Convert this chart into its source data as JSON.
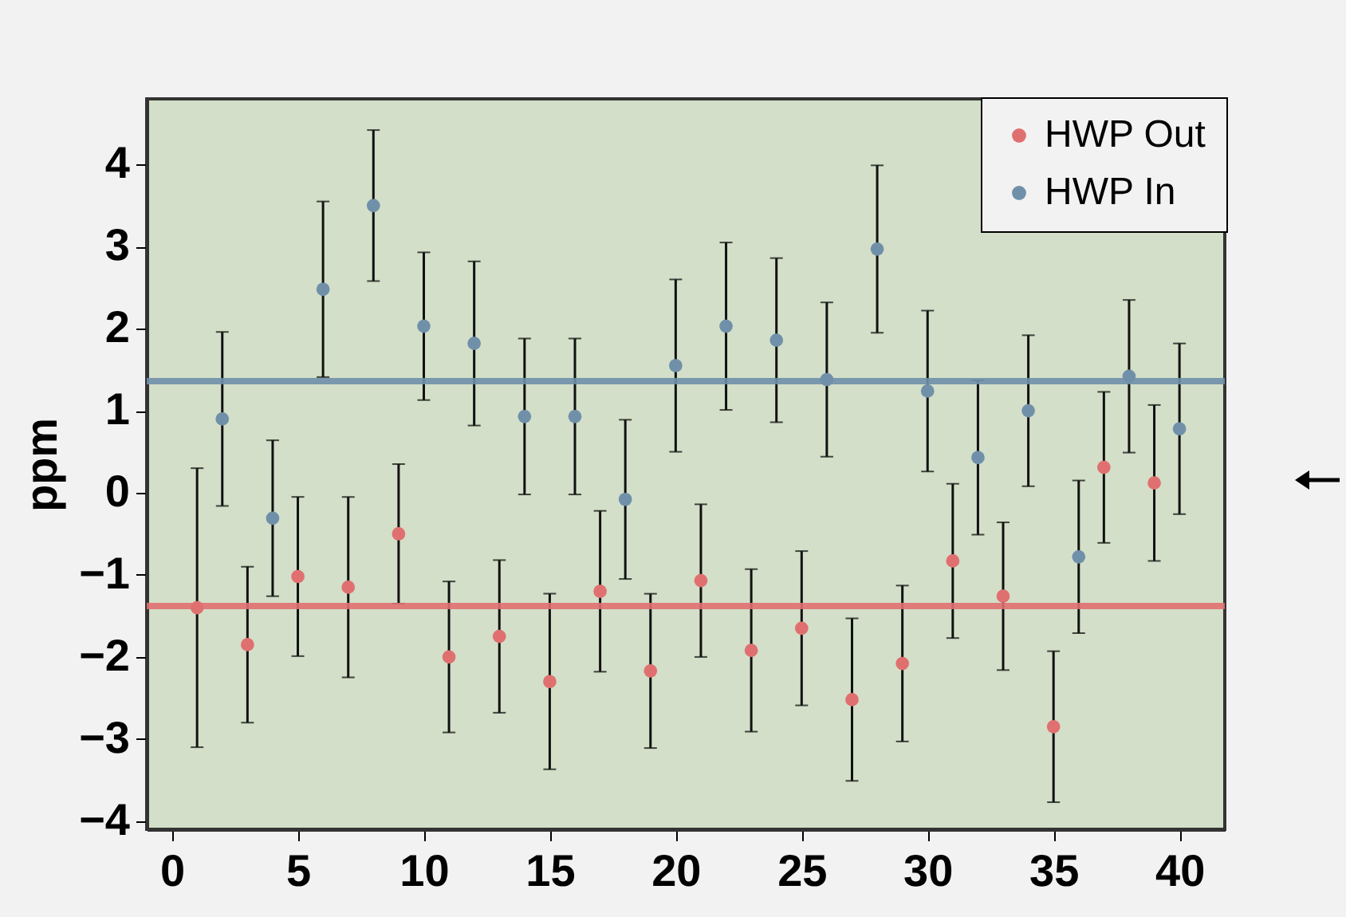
{
  "chart_data": {
    "type": "scatter",
    "ylabel": "ppm",
    "xlim": [
      -1,
      41.8
    ],
    "ylim": [
      -4.1,
      4.8
    ],
    "xticks": [
      0,
      5,
      10,
      15,
      20,
      25,
      30,
      35,
      40
    ],
    "yticks": [
      -4,
      -3,
      -2,
      -1,
      0,
      1,
      2,
      3,
      4
    ],
    "grid": false,
    "legend": "top right",
    "marker": "circle",
    "series": [
      {
        "name": "HWP Out",
        "color": "#e07070",
        "x": [
          1,
          3,
          5,
          7,
          9,
          11,
          13,
          15,
          17,
          19,
          21,
          23,
          25,
          27,
          29,
          31,
          33,
          35,
          37,
          39
        ],
        "values": [
          -1.4,
          -1.85,
          -1.02,
          -1.15,
          -0.5,
          -2.0,
          -1.75,
          -2.3,
          -1.2,
          -2.17,
          -1.07,
          -1.92,
          -1.65,
          -2.52,
          -2.08,
          -0.83,
          -1.26,
          -2.85,
          0.31,
          0.12
        ],
        "errors": [
          1.7,
          0.95,
          0.97,
          1.1,
          0.85,
          0.92,
          0.93,
          1.07,
          0.98,
          0.94,
          0.93,
          0.99,
          0.94,
          0.99,
          0.95,
          0.94,
          0.9,
          0.92,
          0.92,
          0.95
        ]
      },
      {
        "name": "HWP In",
        "color": "#7090aa",
        "x": [
          2,
          4,
          6,
          8,
          10,
          12,
          14,
          16,
          18,
          20,
          22,
          24,
          26,
          28,
          30,
          32,
          34,
          36,
          38,
          40
        ],
        "values": [
          0.9,
          -0.31,
          2.48,
          3.5,
          2.03,
          1.82,
          0.93,
          0.93,
          -0.08,
          1.55,
          2.03,
          1.86,
          1.38,
          2.97,
          1.24,
          0.43,
          1.0,
          -0.78,
          1.42,
          0.78
        ],
        "errors": [
          1.06,
          0.95,
          1.07,
          0.92,
          0.9,
          1.0,
          0.95,
          0.95,
          0.97,
          1.05,
          1.02,
          1.0,
          0.94,
          1.02,
          0.98,
          0.94,
          0.92,
          0.93,
          0.93,
          1.04
        ]
      }
    ],
    "ref_lines": [
      {
        "axis": "y",
        "value": 1.36,
        "color": "#7090aa"
      },
      {
        "axis": "y",
        "value": -1.38,
        "color": "#e07070"
      }
    ]
  }
}
